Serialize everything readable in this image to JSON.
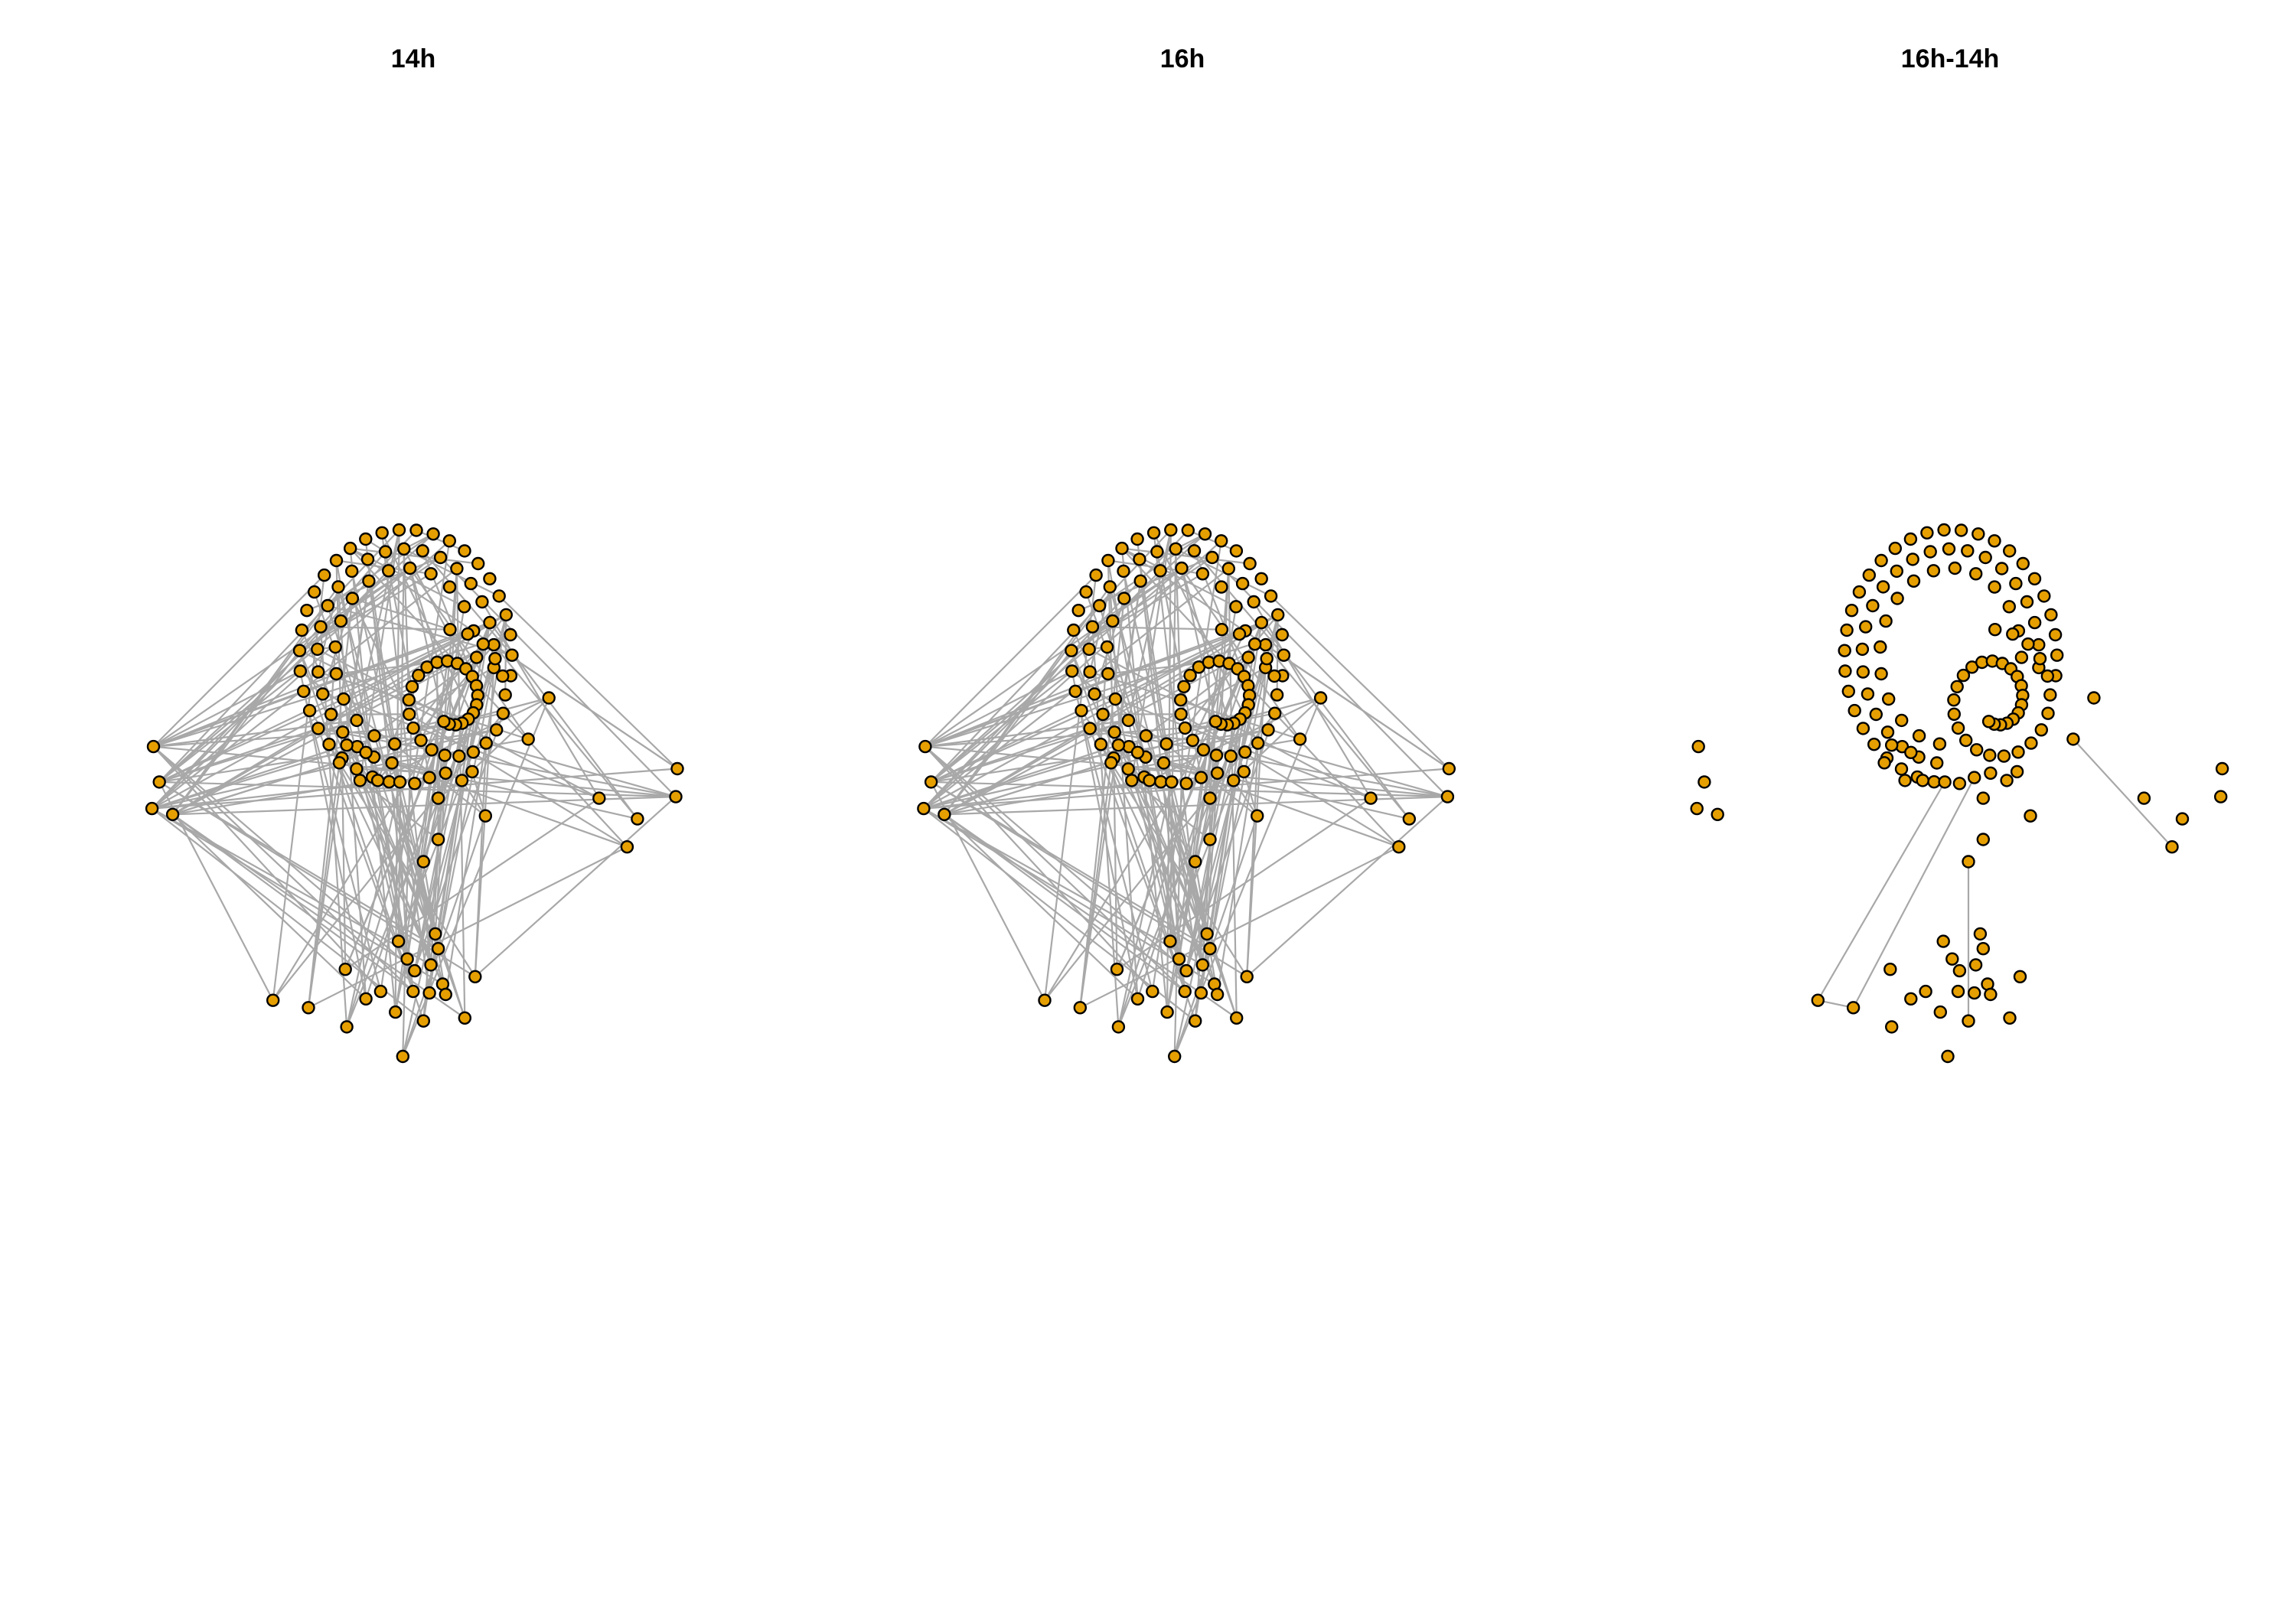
{
  "panels": [
    {
      "title": "14h"
    },
    {
      "title": "16h"
    },
    {
      "title": "16h-14h"
    }
  ],
  "colors": {
    "node_fill": "#E69F00",
    "node_stroke": "#000000",
    "edge": "#A8A8A8",
    "background": "#FFFFFF"
  }
}
